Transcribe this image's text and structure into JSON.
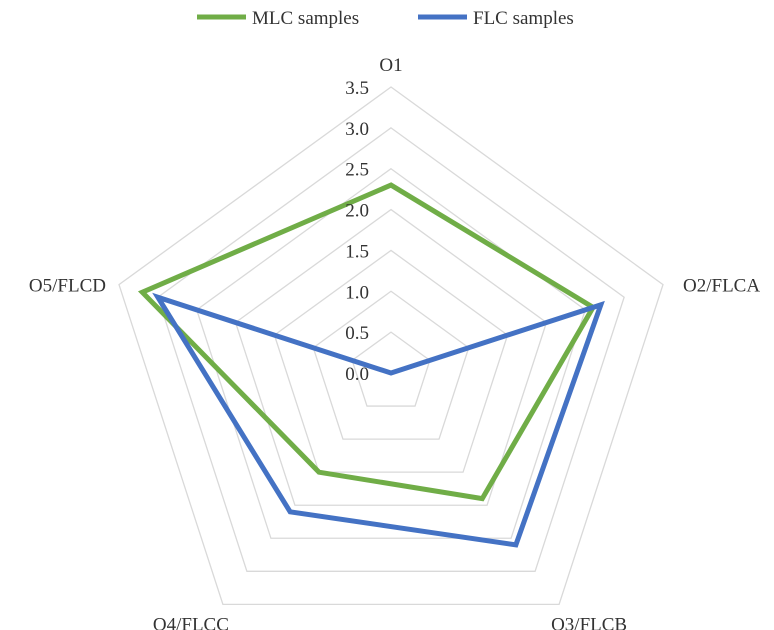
{
  "chart_data": {
    "type": "radar",
    "categories": [
      "O1",
      "O2/FLCA",
      "O3/FLCB",
      "O4/FLCC",
      "O5/FLCD"
    ],
    "rmin": 0,
    "rmax": 3.5,
    "ticks": [
      "0.0",
      "0.5",
      "1.0",
      "1.5",
      "2.0",
      "2.5",
      "3.0",
      "3.5"
    ],
    "tick_values": [
      0,
      0.5,
      1.0,
      1.5,
      2.0,
      2.5,
      3.0,
      3.5
    ],
    "series": [
      {
        "name": "MLC samples",
        "color": "#70AD47",
        "values": [
          2.3,
          2.6,
          1.9,
          1.5,
          3.2
        ]
      },
      {
        "name": "FLC samples",
        "color": "#4472C4",
        "values": [
          0.0,
          2.7,
          2.6,
          2.1,
          3.0
        ]
      }
    ],
    "legend_position": "top",
    "grid": true,
    "grid_color": "#d9d9d9"
  }
}
